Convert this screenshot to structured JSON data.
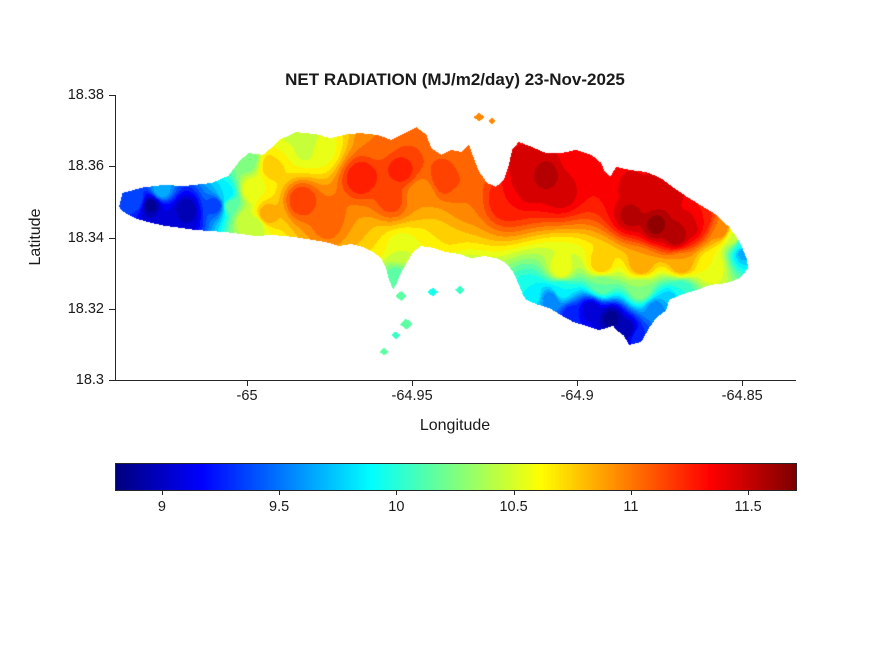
{
  "chart_data": {
    "type": "filled_contour_map",
    "title": "NET RADIATION (MJ/m2/day) 23-Nov-2025",
    "xlabel": "Longitude",
    "ylabel": "Latitude",
    "xlim": [
      -65.04,
      -64.834
    ],
    "ylim": [
      18.3,
      18.38
    ],
    "xticks": [
      -65,
      -64.95,
      -64.9,
      -64.85
    ],
    "yticks": [
      18.3,
      18.32,
      18.34,
      18.36,
      18.38
    ],
    "grid": false,
    "colormap": "jet",
    "contour_interval": 0.1,
    "colorbar": {
      "orientation": "horizontal",
      "min": 8.8,
      "max": 11.7,
      "ticks": [
        9,
        9.5,
        10,
        10.5,
        11,
        11.5
      ]
    },
    "island_polygons": [
      [
        [
          -65.039,
          18.349
        ],
        [
          -65.038,
          18.3525
        ],
        [
          -65.032,
          18.354
        ],
        [
          -65.026,
          18.3547
        ],
        [
          -65.019,
          18.3545
        ],
        [
          -65.011,
          18.3553
        ],
        [
          -65.006,
          18.3573
        ],
        [
          -65.003,
          18.361
        ],
        [
          -65.0,
          18.3637
        ],
        [
          -64.9955,
          18.3632
        ],
        [
          -64.993,
          18.3651
        ],
        [
          -64.9905,
          18.3674
        ],
        [
          -64.9855,
          18.3696
        ],
        [
          -64.9795,
          18.369
        ],
        [
          -64.975,
          18.3679
        ],
        [
          -64.97,
          18.369
        ],
        [
          -64.966,
          18.3693
        ],
        [
          -64.961,
          18.3688
        ],
        [
          -64.9565,
          18.3674
        ],
        [
          -64.952,
          18.3696
        ],
        [
          -64.949,
          18.371
        ],
        [
          -64.946,
          18.3688
        ],
        [
          -64.9445,
          18.3651
        ],
        [
          -64.9415,
          18.3632
        ],
        [
          -64.9385,
          18.3646
        ],
        [
          -64.9355,
          18.364
        ],
        [
          -64.933,
          18.366
        ],
        [
          -64.932,
          18.3632
        ],
        [
          -64.93,
          18.3584
        ],
        [
          -64.9275,
          18.3553
        ],
        [
          -64.925,
          18.3542
        ],
        [
          -64.9225,
          18.3561
        ],
        [
          -64.921,
          18.3603
        ],
        [
          -64.92,
          18.3646
        ],
        [
          -64.918,
          18.3668
        ],
        [
          -64.914,
          18.3654
        ],
        [
          -64.9097,
          18.3637
        ],
        [
          -64.9052,
          18.3637
        ],
        [
          -64.9005,
          18.3646
        ],
        [
          -64.896,
          18.3632
        ],
        [
          -64.893,
          18.3609
        ],
        [
          -64.8921,
          18.3587
        ],
        [
          -64.8903,
          18.3571
        ],
        [
          -64.8884,
          18.3598
        ],
        [
          -64.884,
          18.3589
        ],
        [
          -64.8795,
          18.3584
        ],
        [
          -64.875,
          18.3567
        ],
        [
          -64.871,
          18.3539
        ],
        [
          -64.867,
          18.3514
        ],
        [
          -64.863,
          18.3491
        ],
        [
          -64.858,
          18.3463
        ],
        [
          -64.854,
          18.3427
        ],
        [
          -64.851,
          18.3387
        ],
        [
          -64.849,
          18.3342
        ],
        [
          -64.8485,
          18.3314
        ],
        [
          -64.851,
          18.3286
        ],
        [
          -64.855,
          18.3272
        ],
        [
          -64.86,
          18.3267
        ],
        [
          -64.864,
          18.3253
        ],
        [
          -64.869,
          18.3239
        ],
        [
          -64.8724,
          18.3225
        ],
        [
          -64.8733,
          18.3196
        ],
        [
          -64.8764,
          18.3174
        ],
        [
          -64.8785,
          18.3146
        ],
        [
          -64.8809,
          18.3107
        ],
        [
          -64.8845,
          18.3098
        ],
        [
          -64.8863,
          18.3126
        ],
        [
          -64.8885,
          18.314
        ],
        [
          -64.8894,
          18.3152
        ],
        [
          -64.8936,
          18.314
        ],
        [
          -64.8976,
          18.3152
        ],
        [
          -64.9015,
          18.3163
        ],
        [
          -64.9052,
          18.3182
        ],
        [
          -64.9088,
          18.3202
        ],
        [
          -64.9127,
          18.3213
        ],
        [
          -64.9158,
          18.3225
        ],
        [
          -64.9167,
          18.3239
        ],
        [
          -64.9179,
          18.3267
        ],
        [
          -64.9197,
          18.3303
        ],
        [
          -64.9218,
          18.3328
        ],
        [
          -64.9249,
          18.3342
        ],
        [
          -64.9285,
          18.3348
        ],
        [
          -64.9324,
          18.3342
        ],
        [
          -64.9361,
          18.3354
        ],
        [
          -64.94,
          18.3359
        ],
        [
          -64.944,
          18.3371
        ],
        [
          -64.9476,
          18.3376
        ],
        [
          -64.95,
          18.3359
        ],
        [
          -64.9518,
          18.3331
        ],
        [
          -64.9536,
          18.3303
        ],
        [
          -64.9548,
          18.3275
        ],
        [
          -64.956,
          18.3253
        ],
        [
          -64.9573,
          18.3281
        ],
        [
          -64.9582,
          18.3314
        ],
        [
          -64.9597,
          18.3342
        ],
        [
          -64.9621,
          18.3359
        ],
        [
          -64.9651,
          18.3373
        ],
        [
          -64.9688,
          18.3382
        ],
        [
          -64.9724,
          18.3376
        ],
        [
          -64.9764,
          18.3387
        ],
        [
          -64.9803,
          18.3393
        ],
        [
          -64.9845,
          18.3399
        ],
        [
          -64.9885,
          18.3404
        ],
        [
          -64.993,
          18.3407
        ],
        [
          -64.9976,
          18.3404
        ],
        [
          -65.0021,
          18.341
        ],
        [
          -65.0067,
          18.3415
        ],
        [
          -65.0112,
          18.3418
        ],
        [
          -65.0158,
          18.3421
        ],
        [
          -65.0203,
          18.3427
        ],
        [
          -65.0248,
          18.3432
        ],
        [
          -65.0294,
          18.3441
        ],
        [
          -65.0336,
          18.3452
        ],
        [
          -65.0367,
          18.3466
        ],
        [
          -65.0388,
          18.348
        ]
      ],
      [
        [
          -64.9316,
          18.3738
        ],
        [
          -64.93,
          18.3751
        ],
        [
          -64.9284,
          18.3738
        ],
        [
          -64.93,
          18.3725
        ]
      ],
      [
        [
          -64.9273,
          18.3727
        ],
        [
          -64.9261,
          18.3737
        ],
        [
          -64.9249,
          18.3727
        ],
        [
          -64.9261,
          18.3717
        ]
      ],
      [
        [
          -64.9553,
          18.3236
        ],
        [
          -64.9536,
          18.325
        ],
        [
          -64.9519,
          18.3236
        ],
        [
          -64.9536,
          18.3222
        ]
      ],
      [
        [
          -64.954,
          18.3157
        ],
        [
          -64.9521,
          18.3173
        ],
        [
          -64.9502,
          18.3157
        ],
        [
          -64.9521,
          18.3141
        ]
      ],
      [
        [
          -64.9565,
          18.3126
        ],
        [
          -64.9552,
          18.3137
        ],
        [
          -64.9539,
          18.3126
        ],
        [
          -64.9552,
          18.3115
        ]
      ],
      [
        [
          -64.9601,
          18.3079
        ],
        [
          -64.9588,
          18.309
        ],
        [
          -64.9575,
          18.3079
        ],
        [
          -64.9588,
          18.3068
        ]
      ],
      [
        [
          -64.9456,
          18.3247
        ],
        [
          -64.944,
          18.326
        ],
        [
          -64.9424,
          18.3247
        ],
        [
          -64.944,
          18.3234
        ]
      ],
      [
        [
          -64.9373,
          18.3253
        ],
        [
          -64.9358,
          18.3265
        ],
        [
          -64.9343,
          18.3253
        ],
        [
          -64.9358,
          18.3241
        ]
      ]
    ],
    "samples": [
      [
        -65.0339,
        18.3505,
        9.4
      ],
      [
        -65.0294,
        18.3491,
        8.85
      ],
      [
        -65.0264,
        18.3533,
        9.7
      ],
      [
        -65.0248,
        18.3455,
        9.1
      ],
      [
        -65.0203,
        18.3441,
        9.0
      ],
      [
        -65.0188,
        18.3477,
        8.9
      ],
      [
        -65.0097,
        18.3491,
        9.3
      ],
      [
        -65.0067,
        18.3519,
        9.8
      ],
      [
        -65.0052,
        18.3491,
        10.2
      ],
      [
        -65.0006,
        18.3449,
        10.5
      ],
      [
        -65.0,
        18.3617,
        10.2
      ],
      [
        -64.9991,
        18.3533,
        10.6
      ],
      [
        -64.9976,
        18.3435,
        10.4
      ],
      [
        -64.9946,
        18.3463,
        10.9
      ],
      [
        -64.993,
        18.3603,
        10.8
      ],
      [
        -64.99,
        18.3646,
        10.6
      ],
      [
        -64.987,
        18.3688,
        10.45
      ],
      [
        -64.9839,
        18.3505,
        11.2
      ],
      [
        -64.9824,
        18.366,
        10.4
      ],
      [
        -64.9779,
        18.3646,
        10.55
      ],
      [
        -64.9749,
        18.3449,
        11.1
      ],
      [
        -64.9673,
        18.3421,
        10.9
      ],
      [
        -64.9658,
        18.3567,
        11.3
      ],
      [
        -64.9627,
        18.3379,
        10.7
      ],
      [
        -64.96,
        18.368,
        11.0
      ],
      [
        -64.9567,
        18.3505,
        11.15
      ],
      [
        -64.9551,
        18.3281,
        10.1
      ],
      [
        -64.9536,
        18.3365,
        10.5
      ],
      [
        -64.9536,
        18.3589,
        11.25
      ],
      [
        -64.9491,
        18.3674,
        11.1
      ],
      [
        -64.9476,
        18.3519,
        10.9
      ],
      [
        -64.9446,
        18.3379,
        10.6
      ],
      [
        -64.9415,
        18.3421,
        10.8
      ],
      [
        -64.94,
        18.3561,
        11.2
      ],
      [
        -64.9355,
        18.3505,
        11.0
      ],
      [
        -64.9324,
        18.3604,
        11.0
      ],
      [
        -64.9218,
        18.3505,
        11.3
      ],
      [
        -64.9173,
        18.3617,
        11.45
      ],
      [
        -64.9158,
        18.3547,
        11.5
      ],
      [
        -64.9143,
        18.3239,
        9.9
      ],
      [
        -64.9097,
        18.3575,
        11.55
      ],
      [
        -64.9082,
        18.3225,
        9.5
      ],
      [
        -64.9052,
        18.3253,
        9.9
      ],
      [
        -64.9052,
        18.3309,
        10.6
      ],
      [
        -64.9052,
        18.3533,
        11.5
      ],
      [
        -64.9021,
        18.3182,
        9.2
      ],
      [
        -64.9006,
        18.3617,
        11.35
      ],
      [
        -64.8961,
        18.3196,
        9.0
      ],
      [
        -64.8961,
        18.3632,
        11.4
      ],
      [
        -64.8945,
        18.3561,
        11.3
      ],
      [
        -64.893,
        18.3267,
        10.2
      ],
      [
        -64.893,
        18.3323,
        10.8
      ],
      [
        -64.89,
        18.3174,
        8.85
      ],
      [
        -64.89,
        18.3561,
        11.3
      ],
      [
        -64.8855,
        18.314,
        8.9
      ],
      [
        -64.8855,
        18.3547,
        11.45
      ],
      [
        -64.884,
        18.3463,
        11.55
      ],
      [
        -64.8815,
        18.3118,
        9.3
      ],
      [
        -64.8809,
        18.3253,
        10.3
      ],
      [
        -64.8809,
        18.3323,
        10.9
      ],
      [
        -64.8794,
        18.3519,
        11.4
      ],
      [
        -64.8764,
        18.3196,
        9.5
      ],
      [
        -64.8764,
        18.3435,
        11.65
      ],
      [
        -64.8733,
        18.3533,
        11.5
      ],
      [
        -64.8718,
        18.3225,
        9.7
      ],
      [
        -64.8703,
        18.3407,
        11.6
      ],
      [
        -64.8688,
        18.3253,
        10.0
      ],
      [
        -64.8688,
        18.3323,
        10.9
      ],
      [
        -64.8658,
        18.3435,
        11.5
      ],
      [
        -64.8627,
        18.3449,
        11.3
      ],
      [
        -64.8597,
        18.3323,
        10.6
      ],
      [
        -64.8566,
        18.3421,
        11.0
      ],
      [
        -64.853,
        18.3399,
        10.5
      ],
      [
        -64.8506,
        18.3379,
        10.0
      ],
      [
        -64.85,
        18.336,
        9.6
      ],
      [
        -64.93,
        18.3738,
        11.0
      ],
      [
        -64.9261,
        18.3727,
        10.9
      ],
      [
        -64.9536,
        18.3236,
        10.1
      ],
      [
        -64.9521,
        18.3157,
        10.15
      ],
      [
        -64.9552,
        18.3126,
        10.0
      ],
      [
        -64.9588,
        18.3079,
        10.2
      ],
      [
        -64.944,
        18.3247,
        9.9
      ],
      [
        -64.9358,
        18.3253,
        10.0
      ]
    ]
  }
}
